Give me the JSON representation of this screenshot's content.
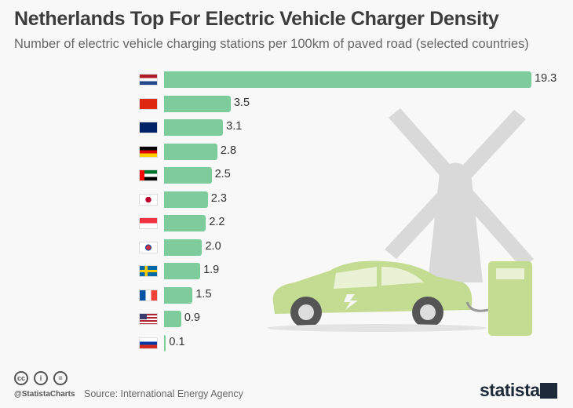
{
  "header": {
    "title": "Netherlands Top For Electric Vehicle Charger Density",
    "subtitle": "Number of electric vehicle charging stations per 100km of paved road (selected countries)"
  },
  "chart_data": {
    "type": "bar",
    "orientation": "horizontal",
    "categories": [
      "Netherlands",
      "China",
      "United Kingdom",
      "Germany",
      "United Arab Emirates",
      "Japan",
      "Singapore",
      "South Korea",
      "Sweden",
      "France",
      "United States",
      "Russia"
    ],
    "values": [
      19.3,
      3.5,
      3.1,
      2.8,
      2.5,
      2.3,
      2.2,
      2.0,
      1.9,
      1.5,
      0.9,
      0.1
    ],
    "value_labels": [
      "19.3",
      "3.5",
      "3.1",
      "2.8",
      "2.5",
      "2.3",
      "2.2",
      "2.0",
      "1.9",
      "1.5",
      "0.9",
      "0.1"
    ],
    "xlim": [
      0,
      19.3
    ],
    "grid": false,
    "bar_color": "#7ecb9b",
    "flags": [
      "netherlands-flag",
      "china-flag",
      "uk-flag",
      "germany-flag",
      "uae-flag",
      "japan-flag",
      "singapore-flag",
      "south-korea-flag",
      "sweden-flag",
      "france-flag",
      "usa-flag",
      "russia-flag"
    ]
  },
  "footer": {
    "handle": "@StatistaCharts",
    "source": "Source: International Energy Agency",
    "logo": "statista",
    "license_icons": [
      "cc",
      "i",
      "="
    ]
  }
}
